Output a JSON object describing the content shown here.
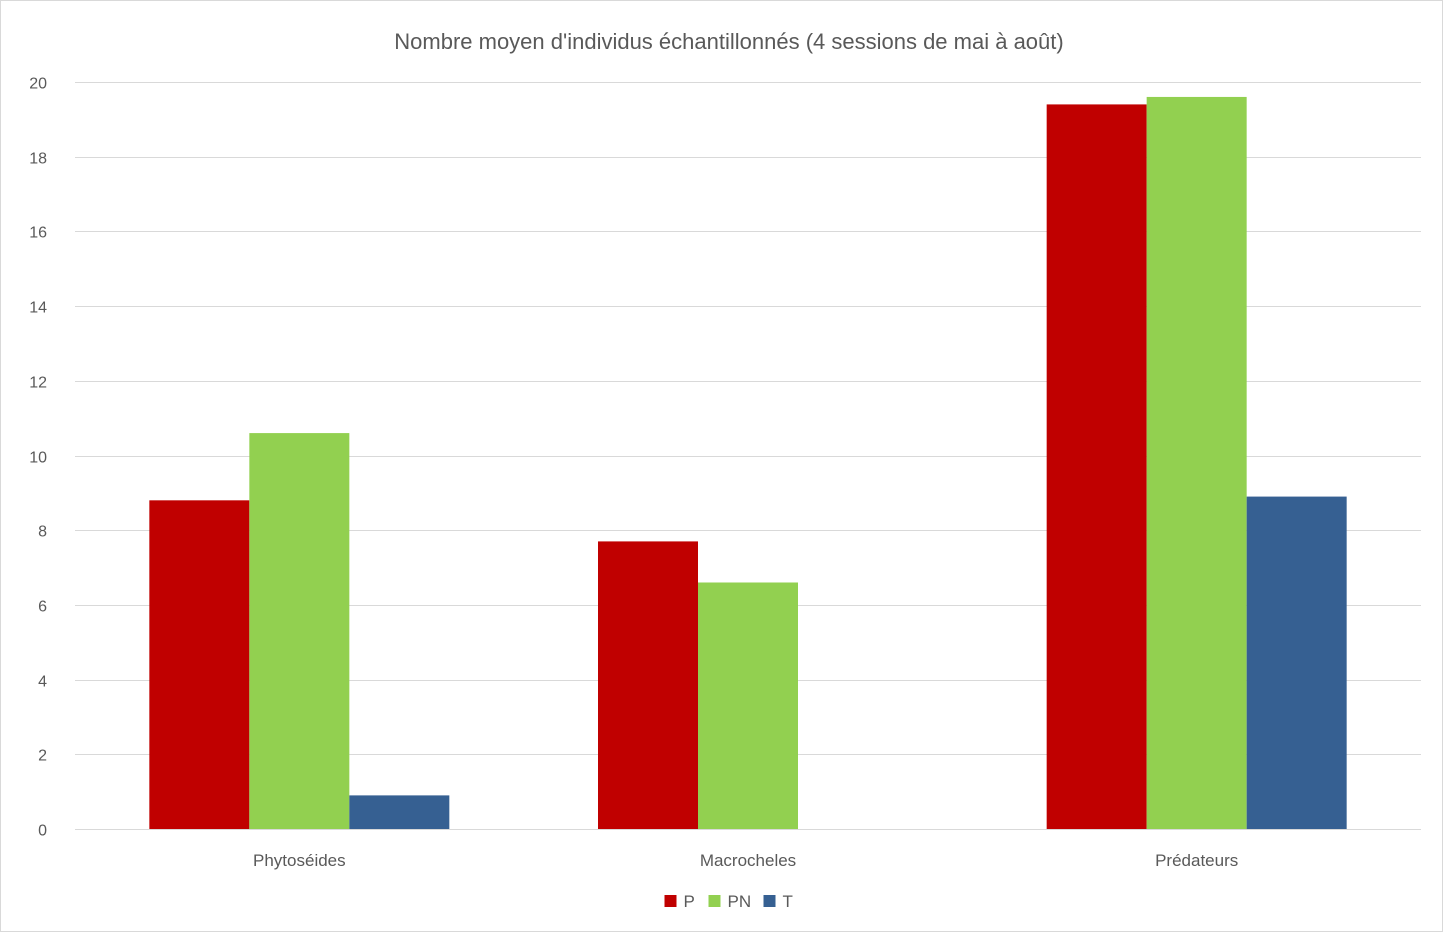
{
  "chart_data": {
    "type": "bar",
    "title": "Nombre moyen d'individus échantillonnés (4 sessions de mai à août)",
    "xlabel": "",
    "ylabel": "",
    "categories": [
      "Phytoséides",
      "Macrocheles",
      "Prédateurs"
    ],
    "series": [
      {
        "name": "P",
        "color": "#c00000",
        "values": [
          8.8,
          7.7,
          19.4
        ]
      },
      {
        "name": "PN",
        "color": "#92d050",
        "values": [
          10.6,
          6.6,
          19.6
        ]
      },
      {
        "name": "T",
        "color": "#366092",
        "values": [
          0.9,
          0,
          8.9
        ]
      }
    ],
    "ylim": [
      0,
      20
    ],
    "yticks": [
      0,
      2,
      4,
      6,
      8,
      10,
      12,
      14,
      16,
      18,
      20
    ],
    "grid": true,
    "legend_position": "bottom"
  }
}
